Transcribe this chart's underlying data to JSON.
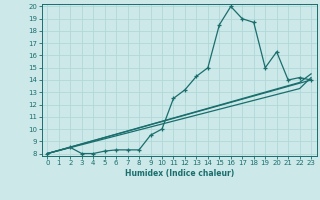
{
  "xlabel": "Humidex (Indice chaleur)",
  "background_color": "#cce8e8",
  "grid_color": "#b0d8d8",
  "line_color": "#1a6e6e",
  "xlim": [
    -0.5,
    23.5
  ],
  "ylim": [
    7.8,
    20.2
  ],
  "xticks": [
    0,
    1,
    2,
    3,
    4,
    5,
    6,
    7,
    8,
    9,
    10,
    11,
    12,
    13,
    14,
    15,
    16,
    17,
    18,
    19,
    20,
    21,
    22,
    23
  ],
  "yticks": [
    8,
    9,
    10,
    11,
    12,
    13,
    14,
    15,
    16,
    17,
    18,
    19,
    20
  ],
  "line1_x": [
    0,
    2,
    3,
    4,
    5,
    6,
    7,
    8,
    9,
    10,
    11,
    12,
    13,
    14,
    15,
    16,
    17,
    18,
    19,
    20,
    21,
    22,
    23
  ],
  "line1_y": [
    8.0,
    8.5,
    8.0,
    8.0,
    8.2,
    8.3,
    8.3,
    8.3,
    9.5,
    10.0,
    12.5,
    13.2,
    14.3,
    15.0,
    18.5,
    20.0,
    19.0,
    18.7,
    15.0,
    16.3,
    14.0,
    14.2,
    14.0
  ],
  "line2_x": [
    0,
    23
  ],
  "line2_y": [
    8.0,
    14.0
  ],
  "line3_x": [
    0,
    22,
    23
  ],
  "line3_y": [
    8.0,
    13.3,
    14.2
  ],
  "line4_x": [
    0,
    22,
    23
  ],
  "line4_y": [
    8.0,
    13.8,
    14.5
  ]
}
